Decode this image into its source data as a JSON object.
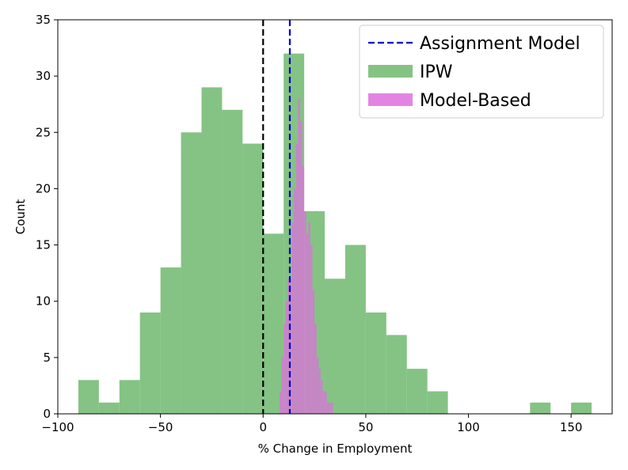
{
  "chart_data": {
    "type": "histogram",
    "xlabel": "% Change in Employment",
    "ylabel": "Count",
    "xlim": [
      -100,
      170
    ],
    "ylim": [
      0,
      35
    ],
    "xticks": [
      -100,
      -50,
      0,
      50,
      100,
      150
    ],
    "xtick_labels": [
      "−100",
      "−50",
      "0",
      "50",
      "100",
      "150"
    ],
    "yticks": [
      0,
      5,
      10,
      15,
      20,
      25,
      30,
      35
    ],
    "ytick_labels": [
      "0",
      "5",
      "10",
      "15",
      "20",
      "25",
      "30",
      "35"
    ],
    "vlines": [
      {
        "name": "zero",
        "x": 0,
        "color": "#000000",
        "style": "dashed"
      },
      {
        "name": "Assignment Model",
        "x": 13,
        "color": "#0000cc",
        "style": "dashed"
      }
    ],
    "series": [
      {
        "name": "IPW",
        "color": "#6fb96f",
        "bin_edges": [
          -90,
          -80,
          -70,
          -60,
          -50,
          -40,
          -30,
          -20,
          -10,
          0,
          10,
          20,
          30,
          40,
          50,
          60,
          70,
          80,
          90,
          100,
          110,
          120,
          130,
          140,
          150,
          160
        ],
        "counts": [
          3,
          1,
          3,
          9,
          13,
          25,
          29,
          27,
          24,
          16,
          32,
          18,
          12,
          15,
          9,
          7,
          4,
          2,
          0,
          0,
          0,
          0,
          1,
          0,
          1
        ]
      },
      {
        "name": "Model-Based",
        "color": "#dd70dd",
        "bin_edges": [
          8,
          9,
          10,
          11,
          12,
          13,
          14,
          15,
          16,
          17,
          18,
          19,
          20,
          21,
          22,
          23,
          24,
          25,
          26,
          27,
          28,
          29,
          30,
          31,
          32,
          33,
          34
        ],
        "counts": [
          2,
          5,
          8,
          10,
          12,
          12,
          17,
          20,
          24,
          28,
          26,
          22,
          18,
          16,
          17,
          15,
          11,
          8,
          5,
          4,
          3,
          2,
          2,
          1,
          1,
          1
        ]
      }
    ],
    "legend": {
      "position": "upper-right",
      "entries": [
        {
          "label": "Assignment Model",
          "kind": "line",
          "color": "#0000cc"
        },
        {
          "label": "IPW",
          "kind": "patch",
          "color": "#6fb96f"
        },
        {
          "label": "Model-Based",
          "kind": "patch",
          "color": "#dd70dd"
        }
      ]
    }
  }
}
